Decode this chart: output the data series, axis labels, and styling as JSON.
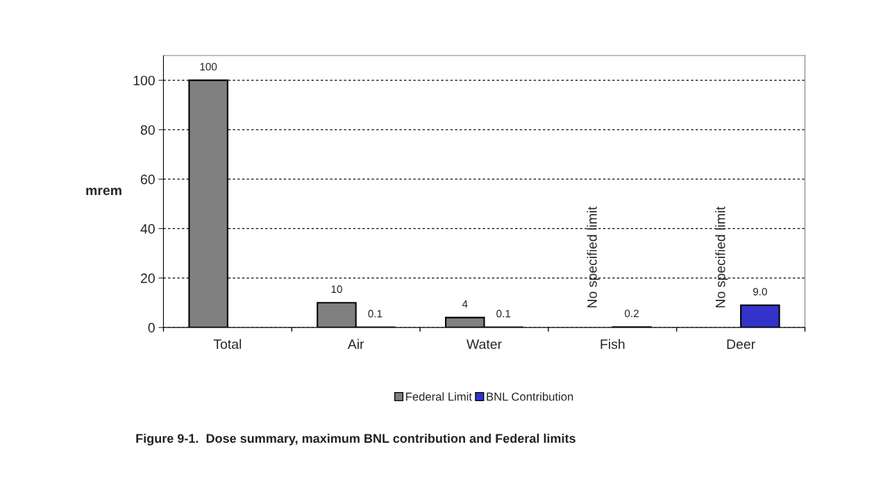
{
  "chart_data": {
    "type": "bar",
    "ylabel": "mrem",
    "categories": [
      "Total",
      "Air",
      "Water",
      "Fish",
      "Deer"
    ],
    "series": [
      {
        "name": "Federal Limit",
        "color": "#808080",
        "values": [
          100,
          10,
          4,
          null,
          null
        ],
        "value_labels": [
          "100",
          "10",
          "4",
          null,
          null
        ]
      },
      {
        "name": "BNL Contribution",
        "color": "#3333cc",
        "values": [
          null,
          0.1,
          0.1,
          0.2,
          9.0
        ],
        "value_labels": [
          null,
          "0.1",
          "0.1",
          "0.2",
          "9.0"
        ]
      }
    ],
    "ylim": [
      0,
      110
    ],
    "yticks": [
      0,
      20,
      40,
      60,
      80,
      100
    ],
    "grid": "y",
    "legend": "bottom",
    "annotations": [
      "No specified limit",
      "No specified limit",
      "Figure 9-1.  Dose summary, maximum BNL contribution and Federal limits"
    ]
  }
}
